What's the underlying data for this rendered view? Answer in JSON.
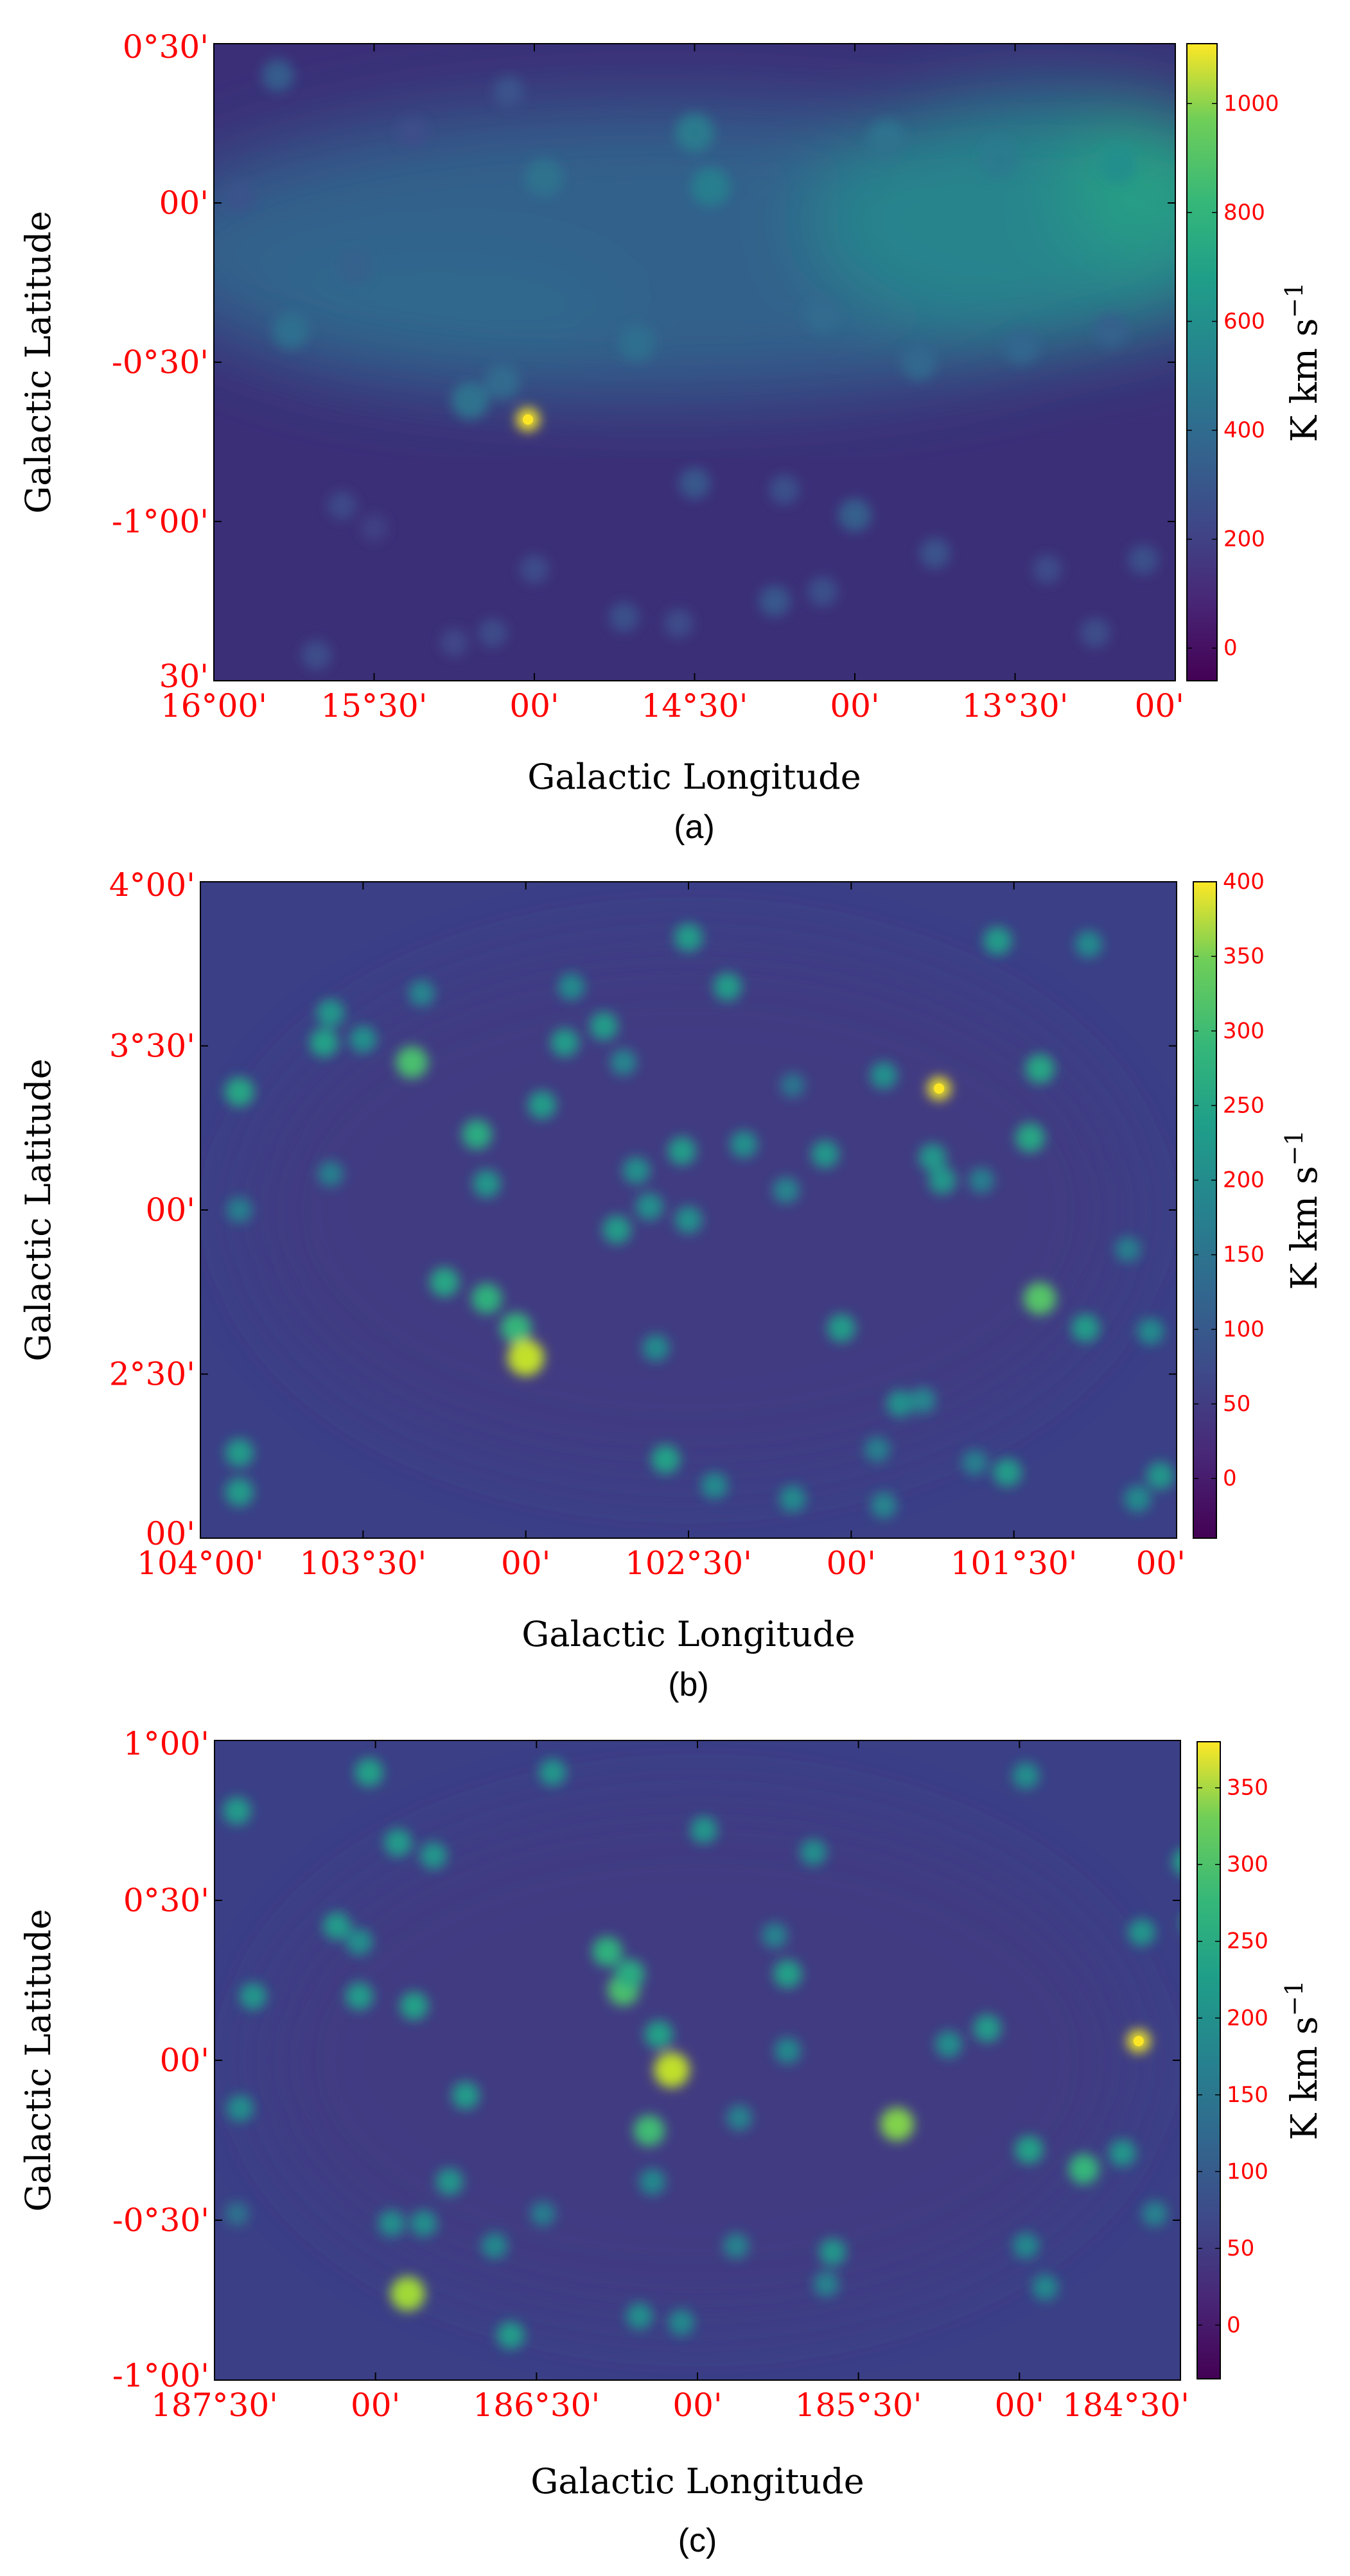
{
  "figure": {
    "common_xlabel": "Galactic Longitude",
    "common_ylabel": "Galactic Latitude",
    "colorbar_unit": "K km s",
    "colorbar_unit_exp": "−1",
    "tick_color": "#ff0000",
    "colormap": "viridis"
  },
  "chart_data": [
    {
      "panel_label": "(a)",
      "type": "heatmap",
      "xlabel": "Galactic Longitude",
      "ylabel": "Galactic Latitude",
      "x_tick_labels": [
        "16°00'",
        "15°30'",
        "00'",
        "14°30'",
        "00'",
        "13°30'",
        "00'"
      ],
      "x_ticks_deg": [
        16.0,
        15.5,
        15.0,
        14.5,
        14.0,
        13.5,
        13.0
      ],
      "y_tick_labels": [
        "0°30'",
        "00'",
        "-0°30'",
        "-1°00'",
        "30'"
      ],
      "y_ticks_deg": [
        0.5,
        0.0,
        -0.5,
        -1.0,
        -1.5
      ],
      "xlim_deg": [
        16.0,
        13.0
      ],
      "ylim_deg": [
        -1.5,
        0.5
      ],
      "colorbar": {
        "label": "K km s−1",
        "ticks": [
          0,
          200,
          400,
          600,
          800,
          1000
        ],
        "range": [
          -60,
          1110
        ]
      },
      "bright_peak": {
        "l": 15.02,
        "b": -0.68,
        "value": 1100
      },
      "clumps": [
        {
          "l": 15.8,
          "b": 0.4,
          "v": 280
        },
        {
          "l": 15.38,
          "b": 0.22,
          "v": 220
        },
        {
          "l": 15.08,
          "b": 0.35,
          "v": 240
        },
        {
          "l": 14.97,
          "b": 0.08,
          "v": 380
        },
        {
          "l": 14.5,
          "b": 0.22,
          "v": 420
        },
        {
          "l": 14.45,
          "b": 0.05,
          "v": 440
        },
        {
          "l": 13.9,
          "b": 0.2,
          "v": 380
        },
        {
          "l": 13.55,
          "b": 0.14,
          "v": 420
        },
        {
          "l": 13.18,
          "b": 0.12,
          "v": 520
        },
        {
          "l": 15.92,
          "b": 0.02,
          "v": 240
        },
        {
          "l": 15.76,
          "b": -0.4,
          "v": 360
        },
        {
          "l": 15.56,
          "b": -0.2,
          "v": 300
        },
        {
          "l": 15.2,
          "b": -0.62,
          "v": 380
        },
        {
          "l": 15.1,
          "b": -0.56,
          "v": 340
        },
        {
          "l": 14.68,
          "b": -0.44,
          "v": 360
        },
        {
          "l": 14.1,
          "b": -0.35,
          "v": 340
        },
        {
          "l": 13.8,
          "b": -0.5,
          "v": 330
        },
        {
          "l": 13.48,
          "b": -0.45,
          "v": 320
        },
        {
          "l": 13.2,
          "b": -0.4,
          "v": 300
        },
        {
          "l": 15.6,
          "b": -0.95,
          "v": 200
        },
        {
          "l": 15.5,
          "b": -1.02,
          "v": 170
        },
        {
          "l": 15.0,
          "b": -1.15,
          "v": 210
        },
        {
          "l": 14.5,
          "b": -0.88,
          "v": 260
        },
        {
          "l": 14.22,
          "b": -0.9,
          "v": 230
        },
        {
          "l": 14.0,
          "b": -0.98,
          "v": 290
        },
        {
          "l": 13.75,
          "b": -1.1,
          "v": 240
        },
        {
          "l": 13.4,
          "b": -1.15,
          "v": 210
        },
        {
          "l": 14.25,
          "b": -1.25,
          "v": 260
        },
        {
          "l": 14.1,
          "b": -1.22,
          "v": 230
        },
        {
          "l": 14.55,
          "b": -1.32,
          "v": 210
        },
        {
          "l": 14.72,
          "b": -1.3,
          "v": 230
        },
        {
          "l": 15.13,
          "b": -1.35,
          "v": 210
        },
        {
          "l": 15.25,
          "b": -1.38,
          "v": 190
        },
        {
          "l": 15.68,
          "b": -1.42,
          "v": 220
        },
        {
          "l": 13.25,
          "b": -1.35,
          "v": 220
        },
        {
          "l": 13.1,
          "b": -1.12,
          "v": 230
        }
      ]
    },
    {
      "panel_label": "(b)",
      "type": "heatmap",
      "xlabel": "Galactic Longitude",
      "ylabel": "Galactic Latitude",
      "x_tick_labels": [
        "104°00'",
        "103°30'",
        "00'",
        "102°30'",
        "00'",
        "101°30'",
        "00'"
      ],
      "x_ticks_deg": [
        104.0,
        103.5,
        103.0,
        102.5,
        102.0,
        101.5,
        101.0
      ],
      "y_tick_labels": [
        "4°00'",
        "3°30'",
        "00'",
        "2°30'",
        "00'"
      ],
      "y_ticks_deg": [
        4.0,
        3.5,
        3.0,
        2.5,
        2.0
      ],
      "xlim_deg": [
        104.0,
        101.0
      ],
      "ylim_deg": [
        2.0,
        4.0
      ],
      "colorbar": {
        "label": "K km s−1",
        "ticks": [
          0,
          50,
          100,
          150,
          200,
          250,
          300,
          350,
          400
        ],
        "range": [
          -40,
          400
        ]
      },
      "bright_peak": {
        "l": 101.73,
        "b": 3.37,
        "v": 390
      },
      "clumps": [
        {
          "l": 103.88,
          "b": 3.36,
          "v": 220
        },
        {
          "l": 103.6,
          "b": 3.6,
          "v": 190
        },
        {
          "l": 103.62,
          "b": 3.51,
          "v": 210
        },
        {
          "l": 103.5,
          "b": 3.52,
          "v": 180
        },
        {
          "l": 103.35,
          "b": 3.45,
          "v": 270
        },
        {
          "l": 103.32,
          "b": 3.66,
          "v": 160
        },
        {
          "l": 103.15,
          "b": 3.23,
          "v": 230
        },
        {
          "l": 102.95,
          "b": 3.32,
          "v": 200
        },
        {
          "l": 102.88,
          "b": 3.51,
          "v": 200
        },
        {
          "l": 102.86,
          "b": 3.68,
          "v": 170
        },
        {
          "l": 102.76,
          "b": 3.56,
          "v": 200
        },
        {
          "l": 102.7,
          "b": 3.45,
          "v": 160
        },
        {
          "l": 102.5,
          "b": 3.83,
          "v": 200
        },
        {
          "l": 102.38,
          "b": 3.68,
          "v": 200
        },
        {
          "l": 101.55,
          "b": 3.82,
          "v": 200
        },
        {
          "l": 101.27,
          "b": 3.81,
          "v": 170
        },
        {
          "l": 102.18,
          "b": 3.38,
          "v": 130
        },
        {
          "l": 101.9,
          "b": 3.41,
          "v": 180
        },
        {
          "l": 101.42,
          "b": 3.43,
          "v": 220
        },
        {
          "l": 102.52,
          "b": 3.18,
          "v": 200
        },
        {
          "l": 102.33,
          "b": 3.2,
          "v": 180
        },
        {
          "l": 102.08,
          "b": 3.17,
          "v": 190
        },
        {
          "l": 101.75,
          "b": 3.16,
          "v": 190
        },
        {
          "l": 101.45,
          "b": 3.22,
          "v": 220
        },
        {
          "l": 103.88,
          "b": 3.0,
          "v": 150
        },
        {
          "l": 103.6,
          "b": 3.11,
          "v": 150
        },
        {
          "l": 103.12,
          "b": 3.08,
          "v": 190
        },
        {
          "l": 102.66,
          "b": 3.12,
          "v": 180
        },
        {
          "l": 102.62,
          "b": 3.01,
          "v": 180
        },
        {
          "l": 102.5,
          "b": 2.97,
          "v": 180
        },
        {
          "l": 102.72,
          "b": 2.94,
          "v": 200
        },
        {
          "l": 102.2,
          "b": 3.06,
          "v": 160
        },
        {
          "l": 101.72,
          "b": 3.09,
          "v": 190
        },
        {
          "l": 101.6,
          "b": 3.09,
          "v": 150
        },
        {
          "l": 103.25,
          "b": 2.78,
          "v": 220
        },
        {
          "l": 103.12,
          "b": 2.73,
          "v": 240
        },
        {
          "l": 103.03,
          "b": 2.64,
          "v": 250
        },
        {
          "l": 103.0,
          "b": 2.55,
          "v": 360
        },
        {
          "l": 102.6,
          "b": 2.58,
          "v": 170
        },
        {
          "l": 102.03,
          "b": 2.64,
          "v": 200
        },
        {
          "l": 101.42,
          "b": 2.73,
          "v": 280
        },
        {
          "l": 101.28,
          "b": 2.64,
          "v": 200
        },
        {
          "l": 101.15,
          "b": 2.88,
          "v": 150
        },
        {
          "l": 101.08,
          "b": 2.63,
          "v": 170
        },
        {
          "l": 103.88,
          "b": 2.26,
          "v": 200
        },
        {
          "l": 103.88,
          "b": 2.14,
          "v": 200
        },
        {
          "l": 102.57,
          "b": 2.24,
          "v": 210
        },
        {
          "l": 102.42,
          "b": 2.16,
          "v": 170
        },
        {
          "l": 102.18,
          "b": 2.12,
          "v": 170
        },
        {
          "l": 101.92,
          "b": 2.27,
          "v": 150
        },
        {
          "l": 101.85,
          "b": 2.41,
          "v": 180
        },
        {
          "l": 101.78,
          "b": 2.42,
          "v": 160
        },
        {
          "l": 101.62,
          "b": 2.23,
          "v": 150
        },
        {
          "l": 101.52,
          "b": 2.2,
          "v": 200
        },
        {
          "l": 101.12,
          "b": 2.12,
          "v": 170
        },
        {
          "l": 101.05,
          "b": 2.19,
          "v": 190
        },
        {
          "l": 101.9,
          "b": 2.1,
          "v": 160
        }
      ]
    },
    {
      "panel_label": "(c)",
      "type": "heatmap",
      "xlabel": "Galactic Longitude",
      "ylabel": "Galactic Latitude",
      "x_tick_labels": [
        "187°30'",
        "00'",
        "186°30'",
        "00'",
        "185°30'",
        "00'",
        "184°30'"
      ],
      "x_ticks_deg": [
        187.5,
        187.0,
        186.5,
        186.0,
        185.5,
        185.0,
        184.5
      ],
      "y_tick_labels": [
        "1°00'",
        "0°30'",
        "00'",
        "-0°30'",
        "-1°00'"
      ],
      "y_ticks_deg": [
        1.0,
        0.5,
        0.0,
        -0.5,
        -1.0
      ],
      "xlim_deg": [
        187.5,
        184.5
      ],
      "ylim_deg": [
        -1.0,
        1.0
      ],
      "colorbar": {
        "label": "K km s−1",
        "ticks": [
          0,
          50,
          100,
          150,
          200,
          250,
          300,
          350
        ],
        "range": [
          -35,
          380
        ]
      },
      "bright_peak": {
        "l": 184.63,
        "b": 0.06,
        "v": 370
      },
      "clumps": [
        {
          "l": 187.43,
          "b": 0.78,
          "v": 190
        },
        {
          "l": 187.38,
          "b": 0.2,
          "v": 180
        },
        {
          "l": 187.42,
          "b": -0.15,
          "v": 170
        },
        {
          "l": 187.43,
          "b": -0.48,
          "v": 120
        },
        {
          "l": 187.02,
          "b": 0.9,
          "v": 200
        },
        {
          "l": 186.93,
          "b": 0.68,
          "v": 190
        },
        {
          "l": 186.82,
          "b": 0.64,
          "v": 180
        },
        {
          "l": 187.12,
          "b": 0.42,
          "v": 190
        },
        {
          "l": 187.05,
          "b": 0.37,
          "v": 170
        },
        {
          "l": 187.05,
          "b": 0.2,
          "v": 190
        },
        {
          "l": 186.88,
          "b": 0.17,
          "v": 200
        },
        {
          "l": 186.72,
          "b": -0.11,
          "v": 190
        },
        {
          "l": 186.77,
          "b": -0.38,
          "v": 180
        },
        {
          "l": 186.95,
          "b": -0.51,
          "v": 170
        },
        {
          "l": 186.85,
          "b": -0.51,
          "v": 170
        },
        {
          "l": 186.9,
          "b": -0.73,
          "v": 320
        },
        {
          "l": 186.63,
          "b": -0.58,
          "v": 160
        },
        {
          "l": 186.58,
          "b": -0.86,
          "v": 190
        },
        {
          "l": 186.48,
          "b": -0.48,
          "v": 140
        },
        {
          "l": 186.45,
          "b": 0.9,
          "v": 180
        },
        {
          "l": 186.28,
          "b": 0.34,
          "v": 230
        },
        {
          "l": 186.23,
          "b": 0.22,
          "v": 260
        },
        {
          "l": 186.21,
          "b": 0.27,
          "v": 220
        },
        {
          "l": 186.12,
          "b": 0.08,
          "v": 200
        },
        {
          "l": 186.08,
          "b": -0.03,
          "v": 340
        },
        {
          "l": 186.15,
          "b": -0.22,
          "v": 250
        },
        {
          "l": 186.14,
          "b": -0.38,
          "v": 160
        },
        {
          "l": 186.18,
          "b": -0.8,
          "v": 170
        },
        {
          "l": 186.05,
          "b": -0.82,
          "v": 160
        },
        {
          "l": 185.98,
          "b": 0.72,
          "v": 180
        },
        {
          "l": 185.87,
          "b": -0.18,
          "v": 150
        },
        {
          "l": 185.88,
          "b": -0.58,
          "v": 150
        },
        {
          "l": 185.76,
          "b": 0.39,
          "v": 150
        },
        {
          "l": 185.72,
          "b": 0.27,
          "v": 200
        },
        {
          "l": 185.72,
          "b": 0.03,
          "v": 160
        },
        {
          "l": 185.64,
          "b": 0.65,
          "v": 170
        },
        {
          "l": 185.58,
          "b": -0.6,
          "v": 180
        },
        {
          "l": 185.6,
          "b": -0.7,
          "v": 150
        },
        {
          "l": 185.38,
          "b": -0.2,
          "v": 300
        },
        {
          "l": 185.22,
          "b": 0.05,
          "v": 170
        },
        {
          "l": 185.1,
          "b": 0.1,
          "v": 190
        },
        {
          "l": 184.98,
          "b": 0.89,
          "v": 170
        },
        {
          "l": 184.97,
          "b": -0.28,
          "v": 200
        },
        {
          "l": 184.98,
          "b": -0.58,
          "v": 160
        },
        {
          "l": 184.92,
          "b": -0.71,
          "v": 160
        },
        {
          "l": 184.8,
          "b": -0.34,
          "v": 240
        },
        {
          "l": 184.68,
          "b": -0.29,
          "v": 180
        },
        {
          "l": 184.62,
          "b": 0.4,
          "v": 180
        },
        {
          "l": 184.58,
          "b": -0.48,
          "v": 150
        },
        {
          "l": 184.48,
          "b": 0.62,
          "v": 200
        },
        {
          "l": 184.45,
          "b": 0.43,
          "v": 210
        },
        {
          "l": 184.28,
          "b": 0.02,
          "v": 170
        },
        {
          "l": 184.33,
          "b": -0.5,
          "v": 160
        },
        {
          "l": 184.12,
          "b": -0.82,
          "v": 150
        },
        {
          "l": 184.25,
          "b": -0.72,
          "v": 160
        },
        {
          "l": 184.2,
          "b": -0.92,
          "v": 140
        },
        {
          "l": 184.12,
          "b": -0.06,
          "v": 190
        },
        {
          "l": 183.97,
          "b": -0.32,
          "v": 160
        },
        {
          "l": 183.88,
          "b": -0.42,
          "v": 140
        },
        {
          "l": 183.72,
          "b": -0.78,
          "v": 180
        },
        {
          "l": 183.55,
          "b": -0.78,
          "v": 160
        },
        {
          "l": 183.6,
          "b": 0.78,
          "v": 200
        },
        {
          "l": 184.42,
          "b": -0.1,
          "v": 150
        }
      ]
    }
  ]
}
